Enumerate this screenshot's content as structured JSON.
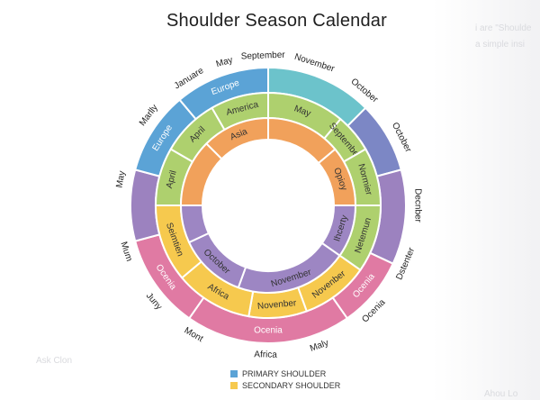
{
  "title": "Shoulder Season Calendar",
  "colors": {
    "blue": "#5ba3d6",
    "teal": "#6cc3cb",
    "indigo": "#7c87c5",
    "purple": "#9c82bf",
    "pink": "#e07aa3",
    "yellow": "#f6c94e",
    "green": "#aed06e",
    "orange": "#f1a15b",
    "inner_purple": "#9d86c3"
  },
  "ring_outer": [
    {
      "start": 0,
      "end": 45,
      "color": "teal",
      "label": ""
    },
    {
      "start": 45,
      "end": 75,
      "color": "indigo",
      "label": ""
    },
    {
      "start": 75,
      "end": 115,
      "color": "purple",
      "label": ""
    },
    {
      "start": 115,
      "end": 145,
      "color": "pink",
      "label": "Ocenia"
    },
    {
      "start": 145,
      "end": 215,
      "color": "pink",
      "label": "Ocenia"
    },
    {
      "start": 215,
      "end": 255,
      "color": "pink",
      "label": "Ocenia"
    },
    {
      "start": 255,
      "end": 285,
      "color": "purple",
      "label": ""
    },
    {
      "start": 285,
      "end": 320,
      "color": "blue",
      "label": "Europe"
    },
    {
      "start": 320,
      "end": 360,
      "color": "blue",
      "label": "Europe"
    }
  ],
  "ring_middle": [
    {
      "start": 0,
      "end": 40,
      "color": "green",
      "label": "May"
    },
    {
      "start": 40,
      "end": 60,
      "color": "green",
      "label": "September"
    },
    {
      "start": 60,
      "end": 90,
      "color": "green",
      "label": "Normier"
    },
    {
      "start": 90,
      "end": 125,
      "color": "green",
      "label": "Netemun"
    },
    {
      "start": 125,
      "end": 160,
      "color": "yellow",
      "label": "Novenber"
    },
    {
      "start": 160,
      "end": 190,
      "color": "yellow",
      "label": "Novenber"
    },
    {
      "start": 190,
      "end": 230,
      "color": "yellow",
      "label": "Africa"
    },
    {
      "start": 230,
      "end": 270,
      "color": "yellow",
      "label": "Seimtien"
    },
    {
      "start": 270,
      "end": 300,
      "color": "green",
      "label": "April"
    },
    {
      "start": 300,
      "end": 330,
      "color": "green",
      "label": "April"
    },
    {
      "start": 330,
      "end": 360,
      "color": "green",
      "label": "America"
    }
  ],
  "ring_inner": [
    {
      "start": 0,
      "end": 50,
      "color": "orange",
      "label": ""
    },
    {
      "start": 50,
      "end": 90,
      "color": "orange",
      "label": "Opioy"
    },
    {
      "start": 90,
      "end": 125,
      "color": "inner_purple",
      "label": "Ihcerty"
    },
    {
      "start": 125,
      "end": 200,
      "color": "inner_purple",
      "label": "November"
    },
    {
      "start": 200,
      "end": 245,
      "color": "inner_purple",
      "label": "October"
    },
    {
      "start": 245,
      "end": 270,
      "color": "inner_purple",
      "label": ""
    },
    {
      "start": 270,
      "end": 315,
      "color": "orange",
      "label": ""
    },
    {
      "start": 315,
      "end": 360,
      "color": "orange",
      "label": "Asia"
    }
  ],
  "outer_labels": [
    {
      "angle": 358,
      "text": "September"
    },
    {
      "angle": 18,
      "text": "November"
    },
    {
      "angle": 40,
      "text": "October"
    },
    {
      "angle": 63,
      "text": "October"
    },
    {
      "angle": 90,
      "text": "Decnber"
    },
    {
      "angle": 113,
      "text": "Dstenter"
    },
    {
      "angle": 135,
      "text": "Ocenia"
    },
    {
      "angle": 160,
      "text": "Maly"
    },
    {
      "angle": 181,
      "text": "Africa"
    },
    {
      "angle": 210,
      "text": "Mont"
    },
    {
      "angle": 230,
      "text": "Juny"
    },
    {
      "angle": 252,
      "text": "Mum"
    },
    {
      "angle": 280,
      "text": "May"
    },
    {
      "angle": 307,
      "text": "Marlly"
    },
    {
      "angle": 328,
      "text": "Januare"
    },
    {
      "angle": 343,
      "text": "May"
    }
  ],
  "legend": [
    {
      "label": "PRIMARY SHOULDER",
      "color": "blue"
    },
    {
      "label": "SECONDARY SHOULDER",
      "color": "yellow"
    }
  ],
  "background_text": {
    "top_right": "i are \"Shoulde",
    "top_right_2": "a simple insi",
    "bottom_left": "Ask Clon",
    "bottom_right": "Ahou Lo"
  }
}
